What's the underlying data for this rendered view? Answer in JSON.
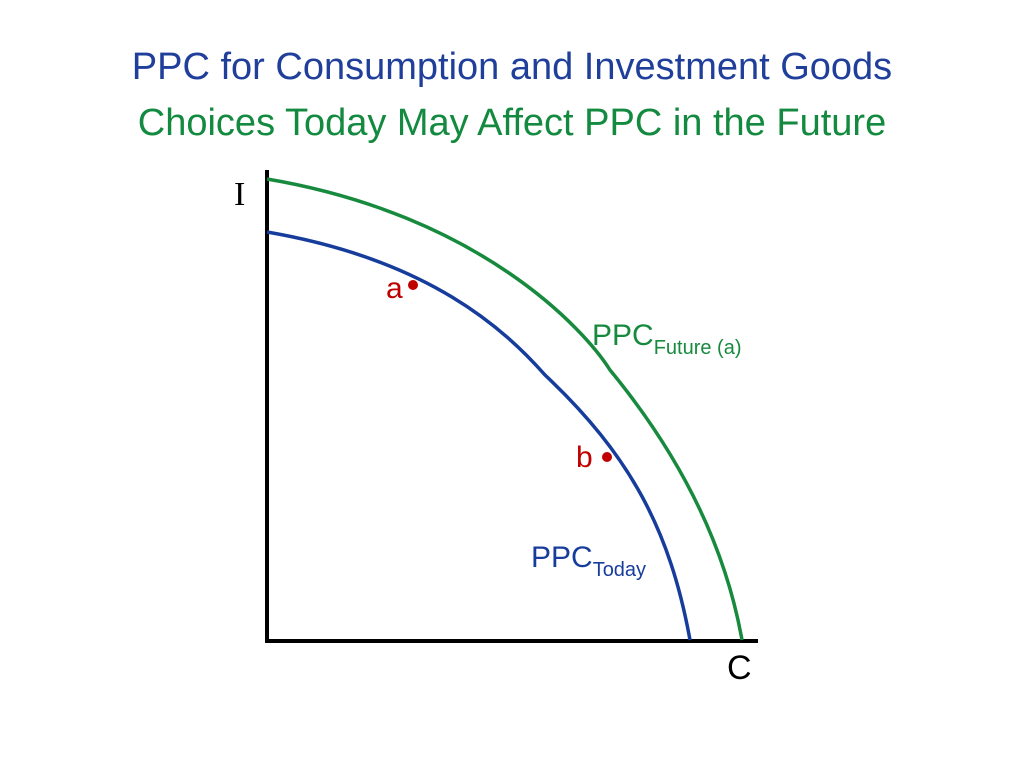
{
  "slide": {
    "title": "PPC for Consumption and Investment Goods",
    "subtitle": "Choices Today May Affect PPC in the Future"
  },
  "diagram": {
    "y_axis_label": "I",
    "x_axis_label": "C",
    "curve_today": {
      "main": "PPC",
      "sub": "Today"
    },
    "curve_future": {
      "main": "PPC",
      "sub": "Future (a)"
    },
    "points": [
      {
        "label": "a"
      },
      {
        "label": "b"
      }
    ]
  },
  "colors": {
    "title": "#1F3F9A",
    "subtitle": "#138A3F",
    "today_curve": "#173D9C",
    "future_curve": "#178A3E",
    "point": "#C00000",
    "axis": "#000000"
  }
}
